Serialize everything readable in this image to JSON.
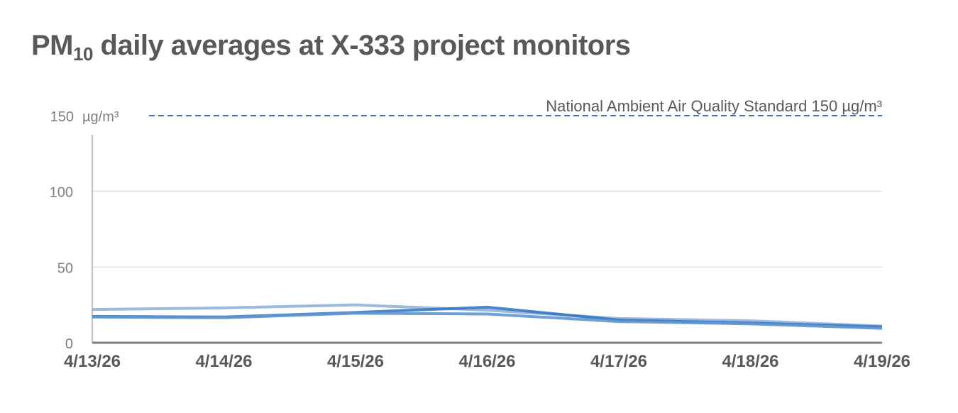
{
  "title": {
    "pre": "PM",
    "sub": "10",
    "post": " daily averages at X-333 project monitors"
  },
  "chart_data": {
    "type": "line",
    "title": "PM10 daily averages at X-333 project monitors",
    "xlabel": "",
    "ylabel": "",
    "unit_label": "µg/m³",
    "categories": [
      "4/13/26",
      "4/14/26",
      "4/15/26",
      "4/16/26",
      "4/17/26",
      "4/18/26",
      "4/19/26"
    ],
    "ylim": [
      0,
      150
    ],
    "yticks": [
      0,
      50,
      100,
      150
    ],
    "grid": true,
    "series": [
      {
        "color": "#8fb4dc",
        "values": [
          22,
          23,
          25,
          21.5,
          16,
          14.5,
          11
        ]
      },
      {
        "color": "#3a78c0",
        "values": [
          17.4,
          17,
          20,
          23.5,
          15,
          13,
          10.5
        ]
      },
      {
        "color": "#5f96d0",
        "values": [
          17,
          16.5,
          19.5,
          19,
          14,
          12.5,
          9.5
        ]
      }
    ],
    "reference_line": {
      "value": 150,
      "label": "National Ambient Air Quality Standard 150 µg/m³",
      "color": "#4472c4"
    }
  }
}
